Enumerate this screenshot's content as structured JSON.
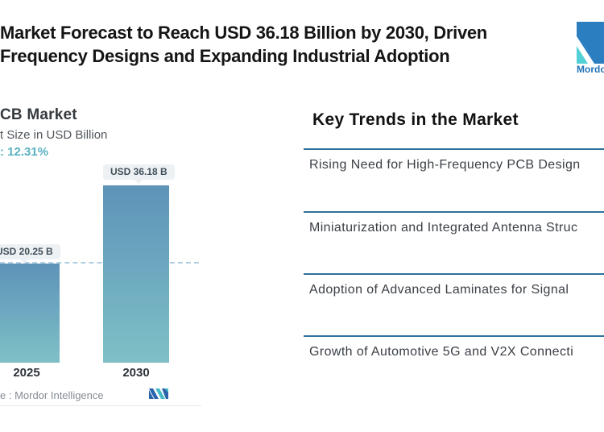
{
  "header": {
    "title_line1": "Market Forecast to Reach USD 36.18 Billion by 2030, Driven",
    "title_line2": "Frequency Designs and Expanding Industrial Adoption",
    "brand_name": "Mordo"
  },
  "chart": {
    "title": "CB Market",
    "subtitle": "t Size in USD Billion",
    "cagr_label": ": 12.31%",
    "source_label": "e :  Mordor Intelligence"
  },
  "chart_data": {
    "type": "bar",
    "categories": [
      "2025",
      "2030"
    ],
    "values": [
      20.25,
      36.18
    ],
    "value_labels": [
      "USD 20.25 B",
      "USD 36.18 B"
    ],
    "title": "CB Market",
    "ylabel": "t Size in USD Billion",
    "cagr": "12.31%",
    "ylim": [
      0,
      40
    ],
    "grid": "off",
    "reference_line_at": 20.25,
    "legend": "none"
  },
  "trends": {
    "heading": "Key Trends in the Market",
    "items": [
      "Rising Need for High-Frequency PCB Design",
      "Miniaturization and Integrated Antenna Struc",
      "Adoption of Advanced Laminates for Signal",
      "Growth of Automotive 5G and V2X Connecti"
    ]
  },
  "colors": {
    "accent_rule_blue": "#2f719c",
    "bar_gradient_top": "#5e93b8",
    "bar_gradient_bottom": "#7fc0c6",
    "cagr_teal": "#58b2c1",
    "tooltip_bg": "#edf1f3",
    "brand_blue": "#2b7fc0",
    "brand_teal": "#53cfd6"
  }
}
